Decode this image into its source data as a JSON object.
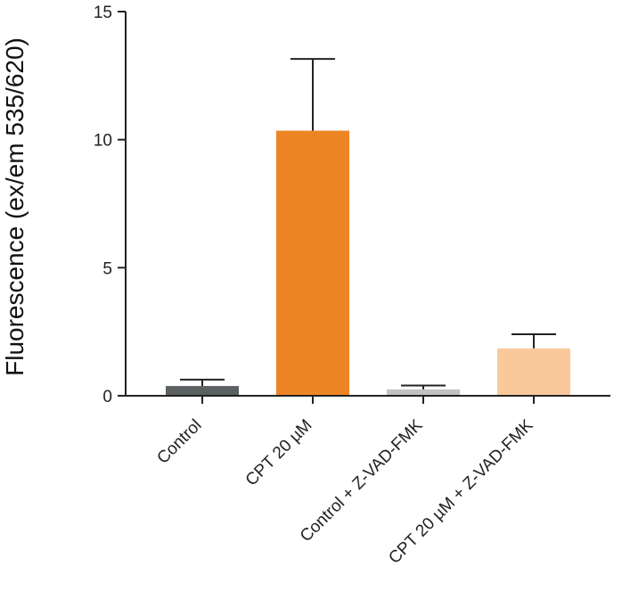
{
  "chart_data": {
    "type": "bar",
    "title": "",
    "xlabel": "",
    "ylabel": "Fluorescence (ex/em 535/620)",
    "ylim": [
      0,
      15
    ],
    "yticks": [
      0,
      5,
      10,
      15
    ],
    "categories": [
      "Control",
      "CPT 20 µM",
      "Control + Z-VAD-FMK",
      "CPT 20 µM + Z-VAD-FMK"
    ],
    "values": [
      0.38,
      10.35,
      0.25,
      1.85
    ],
    "errors": [
      0.25,
      2.8,
      0.15,
      0.55
    ],
    "colors": [
      "#5b6061",
      "#ee8524",
      "#c2c2c2",
      "#f9c99c"
    ],
    "grid": false,
    "legend": "none"
  }
}
